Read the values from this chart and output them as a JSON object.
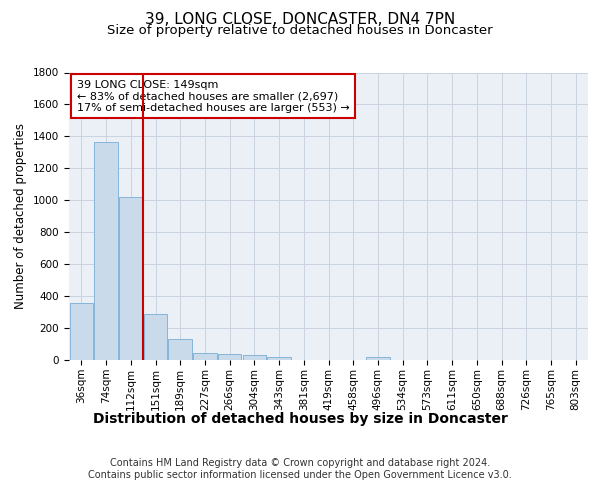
{
  "title": "39, LONG CLOSE, DONCASTER, DN4 7PN",
  "subtitle": "Size of property relative to detached houses in Doncaster",
  "dist_label": "Distribution of detached houses by size in Doncaster",
  "ylabel": "Number of detached properties",
  "footer_line1": "Contains HM Land Registry data © Crown copyright and database right 2024.",
  "footer_line2": "Contains public sector information licensed under the Open Government Licence v3.0.",
  "bins": [
    "36sqm",
    "74sqm",
    "112sqm",
    "151sqm",
    "189sqm",
    "227sqm",
    "266sqm",
    "304sqm",
    "343sqm",
    "381sqm",
    "419sqm",
    "458sqm",
    "496sqm",
    "534sqm",
    "573sqm",
    "611sqm",
    "650sqm",
    "688sqm",
    "726sqm",
    "765sqm",
    "803sqm"
  ],
  "bar_heights": [
    355,
    1365,
    1020,
    290,
    130,
    45,
    35,
    30,
    20,
    0,
    0,
    0,
    20,
    0,
    0,
    0,
    0,
    0,
    0,
    0,
    0
  ],
  "bar_color": "#c9daea",
  "bar_edge_color": "#7aadd4",
  "grid_color": "#c8d4e0",
  "bg_color": "#eaf0f6",
  "vline_x": 2.5,
  "vline_color": "#cc0000",
  "annotation_line1": "39 LONG CLOSE: 149sqm",
  "annotation_line2": "← 83% of detached houses are smaller (2,697)",
  "annotation_line3": "17% of semi-detached houses are larger (553) →",
  "annotation_box_color": "#cc0000",
  "ylim": [
    0,
    1800
  ],
  "yticks": [
    0,
    200,
    400,
    600,
    800,
    1000,
    1200,
    1400,
    1600,
    1800
  ],
  "title_fontsize": 11,
  "subtitle_fontsize": 9.5,
  "dist_label_fontsize": 10,
  "ylabel_fontsize": 8.5,
  "annot_fontsize": 8,
  "tick_fontsize": 7.5,
  "footer_fontsize": 7
}
